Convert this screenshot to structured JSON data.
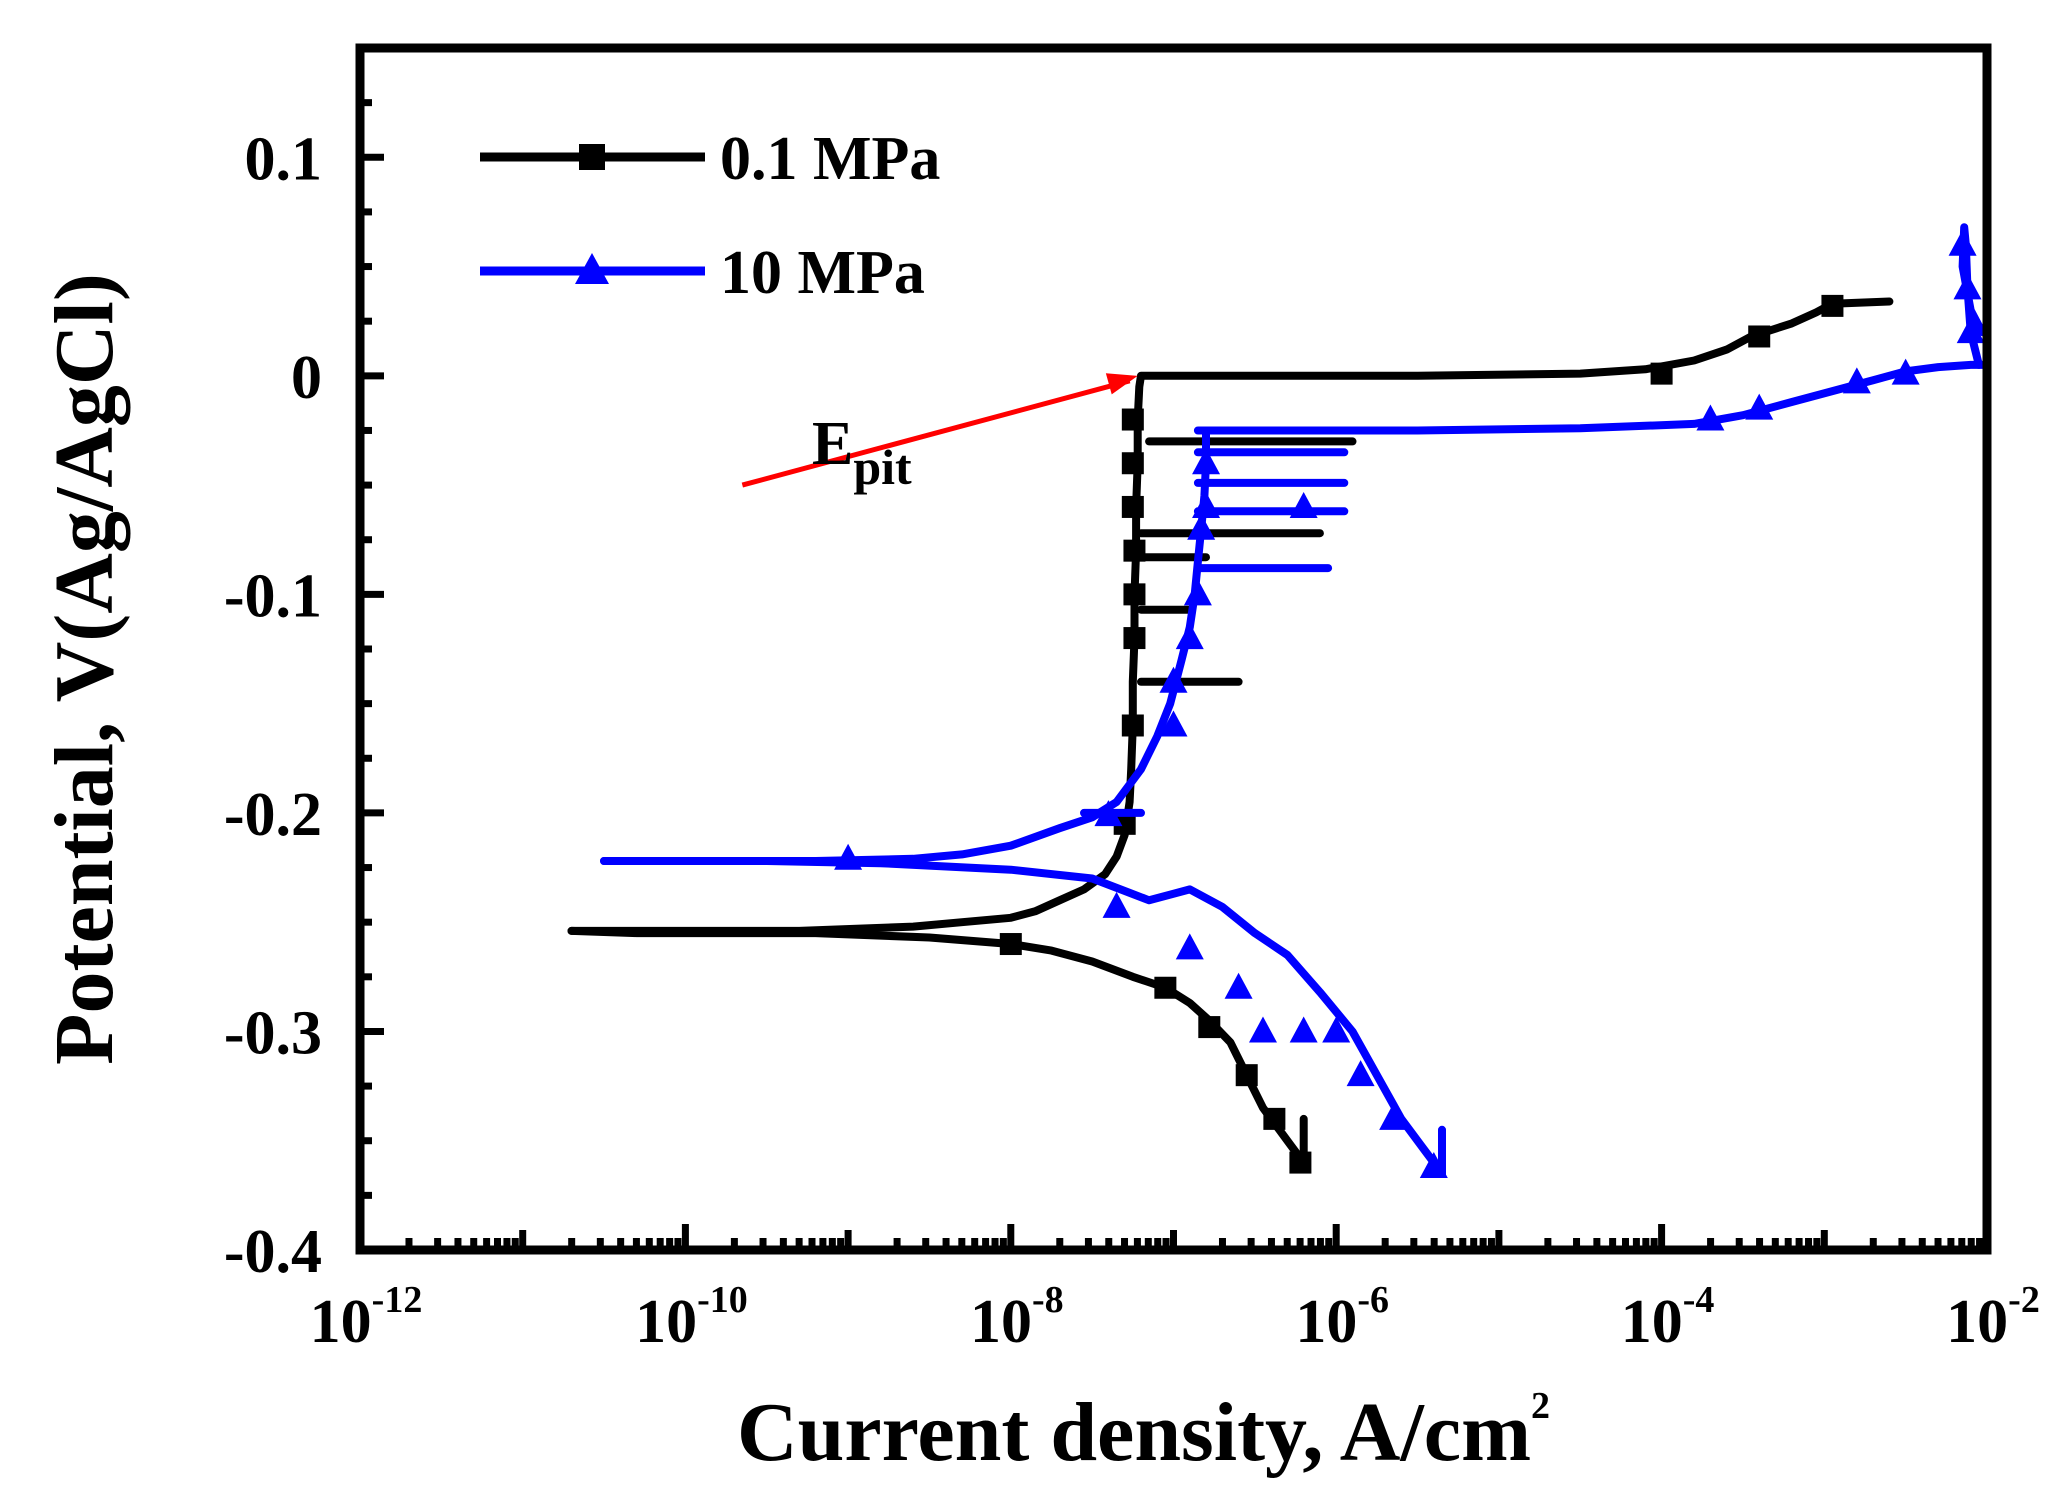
{
  "chart_data": {
    "type": "line",
    "xscale": "log",
    "xlabel": "Current density, A/cm",
    "xlabel_sup": "2",
    "ylabel": "Potential, V(Ag/AgCl)",
    "xlim_exp": [
      -12,
      -2
    ],
    "ylim": [
      -0.4,
      0.15
    ],
    "x_ticks": [
      {
        "base": "10",
        "exp": "-12"
      },
      {
        "base": "10",
        "exp": "-10"
      },
      {
        "base": "10",
        "exp": "-8"
      },
      {
        "base": "10",
        "exp": "-6"
      },
      {
        "base": "10",
        "exp": "-4"
      },
      {
        "base": "10",
        "exp": "-2"
      }
    ],
    "y_ticks": [
      "-0.4",
      "-0.3",
      "-0.2",
      "-0.1",
      "0",
      "0.1"
    ],
    "legend_position": "top-left",
    "colors": {
      "series_1": "#000000",
      "series_2": "#0000ff",
      "arrow": "#ff0000"
    },
    "annotation": {
      "text": "E",
      "sub": "pit",
      "target": [
        -7.22,
        0.0
      ],
      "source": [
        -9.65,
        -0.05
      ]
    },
    "series": [
      {
        "name": "0.1 MPa",
        "color": "#000000",
        "marker": "square",
        "segments": [
          [
            [
              -6.2,
              -0.36
            ],
            [
              -6.25,
              -0.355
            ],
            [
              -6.35,
              -0.345
            ],
            [
              -6.45,
              -0.335
            ],
            [
              -6.55,
              -0.32
            ],
            [
              -6.65,
              -0.305
            ],
            [
              -6.78,
              -0.295
            ],
            [
              -6.9,
              -0.287
            ],
            [
              -7.05,
              -0.28
            ],
            [
              -7.25,
              -0.275
            ],
            [
              -7.5,
              -0.268
            ],
            [
              -7.75,
              -0.263
            ],
            [
              -8.0,
              -0.26
            ],
            [
              -8.5,
              -0.257
            ],
            [
              -9.2,
              -0.255
            ],
            [
              -9.7,
              -0.255
            ],
            [
              -10.3,
              -0.255
            ],
            [
              -10.7,
              -0.254
            ]
          ],
          [
            [
              -10.7,
              -0.254
            ],
            [
              -10.0,
              -0.254
            ],
            [
              -9.3,
              -0.254
            ],
            [
              -8.6,
              -0.252
            ],
            [
              -8.3,
              -0.25
            ],
            [
              -8.0,
              -0.248
            ],
            [
              -7.85,
              -0.245
            ],
            [
              -7.7,
              -0.24
            ],
            [
              -7.55,
              -0.235
            ],
            [
              -7.42,
              -0.228
            ],
            [
              -7.35,
              -0.22
            ],
            [
              -7.3,
              -0.21
            ],
            [
              -7.27,
              -0.195
            ],
            [
              -7.26,
              -0.18
            ],
            [
              -7.25,
              -0.16
            ],
            [
              -7.25,
              -0.14
            ],
            [
              -7.24,
              -0.12
            ],
            [
              -7.24,
              -0.1
            ],
            [
              -7.23,
              -0.08
            ],
            [
              -7.23,
              -0.06
            ],
            [
              -7.22,
              -0.04
            ],
            [
              -7.22,
              -0.02
            ],
            [
              -7.21,
              -0.005
            ],
            [
              -7.2,
              0.0
            ],
            [
              -6.5,
              0.0
            ],
            [
              -5.5,
              0.0
            ],
            [
              -4.5,
              0.001
            ],
            [
              -4.1,
              0.003
            ],
            [
              -3.8,
              0.007
            ],
            [
              -3.6,
              0.012
            ],
            [
              -3.45,
              0.018
            ],
            [
              -3.2,
              0.024
            ],
            [
              -3.05,
              0.029
            ],
            [
              -2.95,
              0.033
            ],
            [
              -2.6,
              0.034
            ]
          ],
          [
            [
              -7.15,
              -0.03
            ],
            [
              -6.2,
              -0.03
            ],
            [
              -5.9,
              -0.03
            ]
          ],
          [
            [
              -7.2,
              -0.072
            ],
            [
              -6.4,
              -0.072
            ],
            [
              -6.1,
              -0.072
            ]
          ],
          [
            [
              -7.2,
              -0.083
            ],
            [
              -6.8,
              -0.083
            ]
          ],
          [
            [
              -7.2,
              -0.107
            ],
            [
              -6.9,
              -0.107
            ]
          ],
          [
            [
              -7.2,
              -0.14
            ],
            [
              -6.6,
              -0.14
            ]
          ],
          [
            [
              -6.2,
              -0.36
            ],
            [
              -6.2,
              -0.34
            ]
          ]
        ],
        "markers": [
          [
            -8.0,
            -0.26
          ],
          [
            -7.05,
            -0.28
          ],
          [
            -6.78,
            -0.298
          ],
          [
            -6.55,
            -0.32
          ],
          [
            -6.38,
            -0.34
          ],
          [
            -6.22,
            -0.36
          ],
          [
            -4.0,
            0.001
          ],
          [
            -3.4,
            0.018
          ],
          [
            -2.95,
            0.032
          ],
          [
            -7.25,
            -0.02
          ],
          [
            -7.25,
            -0.04
          ],
          [
            -7.25,
            -0.06
          ],
          [
            -7.24,
            -0.08
          ],
          [
            -7.24,
            -0.1
          ],
          [
            -7.24,
            -0.12
          ],
          [
            -7.25,
            -0.16
          ],
          [
            -7.3,
            -0.205
          ]
        ]
      },
      {
        "name": "10 MPa",
        "color": "#0000ff",
        "marker": "triangle",
        "segments": [
          [
            [
              -5.35,
              -0.365
            ],
            [
              -5.45,
              -0.355
            ],
            [
              -5.6,
              -0.34
            ],
            [
              -5.75,
              -0.32
            ],
            [
              -5.9,
              -0.3
            ],
            [
              -6.1,
              -0.282
            ],
            [
              -6.3,
              -0.265
            ],
            [
              -6.5,
              -0.255
            ],
            [
              -6.7,
              -0.243
            ],
            [
              -6.9,
              -0.235
            ],
            [
              -7.15,
              -0.24
            ],
            [
              -7.5,
              -0.23
            ],
            [
              -8.0,
              -0.226
            ],
            [
              -8.8,
              -0.223
            ],
            [
              -9.5,
              -0.222
            ],
            [
              -10.5,
              -0.222
            ]
          ],
          [
            [
              -10.5,
              -0.222
            ],
            [
              -9.8,
              -0.222
            ],
            [
              -9.2,
              -0.222
            ],
            [
              -8.6,
              -0.221
            ],
            [
              -8.3,
              -0.219
            ],
            [
              -8.0,
              -0.215
            ],
            [
              -7.7,
              -0.207
            ],
            [
              -7.5,
              -0.202
            ],
            [
              -7.35,
              -0.195
            ],
            [
              -7.2,
              -0.18
            ],
            [
              -7.1,
              -0.165
            ],
            [
              -7.02,
              -0.15
            ],
            [
              -6.95,
              -0.13
            ],
            [
              -6.9,
              -0.115
            ],
            [
              -6.87,
              -0.1
            ],
            [
              -6.85,
              -0.085
            ],
            [
              -6.83,
              -0.07
            ],
            [
              -6.81,
              -0.055
            ],
            [
              -6.8,
              -0.04
            ],
            [
              -6.8,
              -0.025
            ]
          ],
          [
            [
              -6.85,
              -0.025
            ],
            [
              -5.5,
              -0.025
            ],
            [
              -4.5,
              -0.024
            ],
            [
              -3.8,
              -0.022
            ],
            [
              -3.5,
              -0.018
            ],
            [
              -3.2,
              -0.012
            ],
            [
              -2.95,
              -0.007
            ],
            [
              -2.7,
              -0.002
            ],
            [
              -2.5,
              0.002
            ],
            [
              -2.3,
              0.004
            ],
            [
              -2.1,
              0.005
            ],
            [
              -2.0,
              0.005
            ]
          ],
          [
            [
              -7.55,
              -0.2
            ],
            [
              -7.2,
              -0.2
            ]
          ],
          [
            [
              -6.85,
              -0.035
            ],
            [
              -5.95,
              -0.035
            ]
          ],
          [
            [
              -6.85,
              -0.049
            ],
            [
              -5.95,
              -0.049
            ]
          ],
          [
            [
              -6.85,
              -0.062
            ],
            [
              -5.95,
              -0.062
            ]
          ],
          [
            [
              -6.85,
              -0.088
            ],
            [
              -6.05,
              -0.088
            ]
          ],
          [
            [
              -2.05,
              0.005
            ],
            [
              -2.1,
              0.02
            ],
            [
              -2.12,
              0.04
            ],
            [
              -2.13,
              0.06
            ],
            [
              -2.14,
              0.068
            ],
            [
              -2.15,
              0.05
            ],
            [
              -2.1,
              0.03
            ],
            [
              -2.03,
              0.02
            ]
          ],
          [
            [
              -5.35,
              -0.365
            ],
            [
              -5.35,
              -0.345
            ]
          ]
        ],
        "markers": [
          [
            -9.0,
            -0.221
          ],
          [
            -7.4,
            -0.201
          ],
          [
            -7.0,
            -0.16
          ],
          [
            -6.9,
            -0.12
          ],
          [
            -6.83,
            -0.07
          ],
          [
            -6.8,
            -0.04
          ],
          [
            -6.85,
            -0.1
          ],
          [
            -7.0,
            -0.14
          ],
          [
            -6.8,
            -0.06
          ],
          [
            -7.35,
            -0.243
          ],
          [
            -6.9,
            -0.262
          ],
          [
            -6.6,
            -0.28
          ],
          [
            -6.45,
            -0.3
          ],
          [
            -6.2,
            -0.3
          ],
          [
            -6.0,
            -0.3
          ],
          [
            -5.85,
            -0.32
          ],
          [
            -5.65,
            -0.34
          ],
          [
            -5.4,
            -0.362
          ],
          [
            -6.2,
            -0.06
          ],
          [
            -3.7,
            -0.02
          ],
          [
            -3.4,
            -0.015
          ],
          [
            -2.8,
            -0.003
          ],
          [
            -2.5,
            0.001
          ],
          [
            -2.15,
            0.06
          ],
          [
            -2.12,
            0.04
          ],
          [
            -2.1,
            0.02
          ]
        ]
      }
    ]
  }
}
